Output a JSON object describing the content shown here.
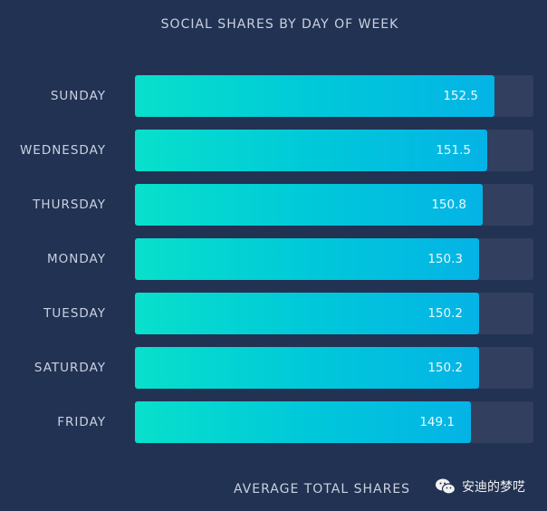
{
  "chart_data": {
    "type": "bar",
    "orientation": "horizontal",
    "title": "SOCIAL SHARES BY DAY OF WEEK",
    "xlabel": "AVERAGE TOTAL SHARES",
    "ylabel": "",
    "categories": [
      "SUNDAY",
      "WEDNESDAY",
      "THURSDAY",
      "MONDAY",
      "TUESDAY",
      "SATURDAY",
      "FRIDAY"
    ],
    "values": [
      152.5,
      151.5,
      150.8,
      150.3,
      150.2,
      150.2,
      149.1
    ],
    "value_labels": [
      "152.5",
      "151.5",
      "150.8",
      "150.3",
      "150.2",
      "150.2",
      "149.1"
    ],
    "grid": false,
    "legend": "none",
    "colors": {
      "bar_start": "#08e0cb",
      "bar_end": "#04b3e6",
      "track": "#323f5e",
      "background": "#223253"
    }
  },
  "watermark": {
    "text": "安迪的梦呓",
    "icon": "wechat-icon"
  }
}
